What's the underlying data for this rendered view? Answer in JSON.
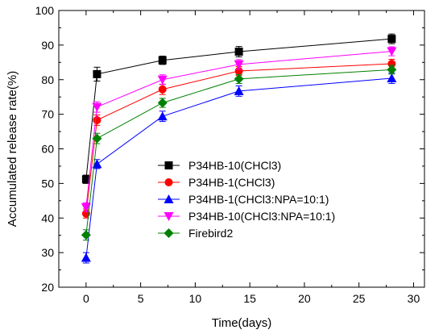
{
  "chart_data": {
    "type": "line",
    "xlabel": "Time(days)",
    "ylabel": "Accumulated release rate(%)",
    "xlim": [
      -2.5,
      31
    ],
    "ylim": [
      20,
      100
    ],
    "xticks": [
      0,
      5,
      10,
      15,
      20,
      25,
      30
    ],
    "yticks": [
      20,
      30,
      40,
      50,
      60,
      70,
      80,
      90,
      100
    ],
    "x": [
      0,
      1,
      7,
      14,
      28
    ],
    "grid": false,
    "legend_position": "center-right",
    "series": [
      {
        "name": "P34HB-10(CHCl3)",
        "marker": "square",
        "color": "#000000",
        "values": [
          51.2,
          81.6,
          85.6,
          88.1,
          91.8
        ],
        "errors": [
          1.2,
          2.0,
          1.2,
          1.5,
          1.4
        ]
      },
      {
        "name": "P34HB-1(CHCl3)",
        "marker": "circle",
        "color": "#ff0000",
        "values": [
          41.3,
          68.3,
          77.2,
          82.5,
          84.6
        ],
        "errors": [
          1.3,
          1.5,
          1.5,
          1.3,
          1.3
        ]
      },
      {
        "name": "P34HB-1(CHCl3:NPA=10:1)",
        "marker": "triangle-up",
        "color": "#0000ff",
        "values": [
          28.5,
          55.6,
          69.4,
          76.7,
          80.4
        ],
        "errors": [
          1.5,
          1.3,
          1.5,
          1.5,
          1.5
        ]
      },
      {
        "name": "P34HB-10(CHCl3:NPA=10:1)",
        "marker": "triangle-down",
        "color": "#ff00ff",
        "values": [
          43.1,
          72.1,
          80.0,
          84.4,
          88.2
        ],
        "errors": [
          1.3,
          1.5,
          1.4,
          1.4,
          1.3
        ]
      },
      {
        "name": "Firebird2",
        "marker": "diamond",
        "color": "#008000",
        "values": [
          35.1,
          63.0,
          73.3,
          80.2,
          82.9
        ],
        "errors": [
          1.5,
          1.5,
          1.3,
          1.3,
          1.3
        ]
      }
    ]
  }
}
